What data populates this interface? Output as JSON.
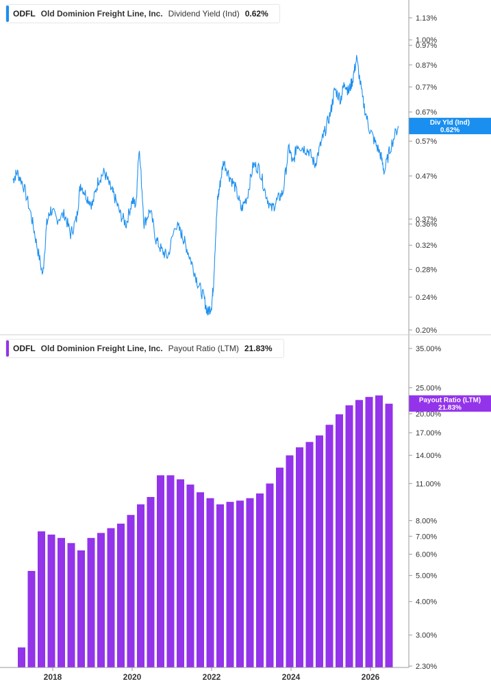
{
  "chart_data": [
    {
      "type": "line",
      "ticker": "ODFL",
      "company": "Old Dominion Freight Line, Inc.",
      "metric": "Dividend Yield (Ind)",
      "current_value": "0.62%",
      "callout_label": "Div Yld (Ind)",
      "callout_value": "0.62%",
      "color": "#1a8ff0",
      "scale": "log",
      "ylim": [
        0.2,
        1.2
      ],
      "y_ticks": [
        {
          "label": "1.13%",
          "value": 1.13
        },
        {
          "label": "1.00%",
          "value": 1.0
        },
        {
          "label": "0.97%",
          "value": 0.97
        },
        {
          "label": "0.87%",
          "value": 0.87
        },
        {
          "label": "0.77%",
          "value": 0.77
        },
        {
          "label": "0.67%",
          "value": 0.67
        },
        {
          "label": "0.57%",
          "value": 0.57
        },
        {
          "label": "0.47%",
          "value": 0.47
        },
        {
          "label": "0.37%",
          "value": 0.37
        },
        {
          "label": "0.36%",
          "value": 0.36
        },
        {
          "label": "0.32%",
          "value": 0.32
        },
        {
          "label": "0.28%",
          "value": 0.28
        },
        {
          "label": "0.24%",
          "value": 0.24
        },
        {
          "label": "0.20%",
          "value": 0.2
        }
      ],
      "x": [
        2017.0,
        2017.1,
        2017.25,
        2017.45,
        2017.6,
        2017.75,
        2017.85,
        2017.95,
        2018.1,
        2018.3,
        2018.45,
        2018.6,
        2018.7,
        2018.85,
        2019.0,
        2019.15,
        2019.3,
        2019.45,
        2019.55,
        2019.7,
        2019.85,
        2020.0,
        2020.1,
        2020.17,
        2020.3,
        2020.45,
        2020.6,
        2020.75,
        2020.9,
        2021.1,
        2021.25,
        2021.35,
        2021.5,
        2021.65,
        2021.8,
        2021.9,
        2022.0,
        2022.05,
        2022.15,
        2022.2,
        2022.3,
        2022.45,
        2022.6,
        2022.75,
        2022.9,
        2023.05,
        2023.2,
        2023.35,
        2023.5,
        2023.65,
        2023.8,
        2023.95,
        2024.05,
        2024.15,
        2024.3,
        2024.45,
        2024.6,
        2024.75,
        2024.85,
        2025.0,
        2025.1,
        2025.25,
        2025.35,
        2025.45,
        2025.55,
        2025.65,
        2025.8,
        2025.95,
        2026.1,
        2026.25,
        2026.35,
        2026.5,
        2026.7
      ],
      "y": [
        0.46,
        0.48,
        0.45,
        0.38,
        0.32,
        0.27,
        0.36,
        0.39,
        0.37,
        0.38,
        0.34,
        0.37,
        0.45,
        0.42,
        0.4,
        0.46,
        0.48,
        0.44,
        0.42,
        0.38,
        0.36,
        0.41,
        0.4,
        0.55,
        0.36,
        0.39,
        0.33,
        0.31,
        0.3,
        0.36,
        0.34,
        0.32,
        0.29,
        0.26,
        0.24,
        0.22,
        0.23,
        0.26,
        0.41,
        0.44,
        0.51,
        0.47,
        0.44,
        0.39,
        0.42,
        0.5,
        0.49,
        0.43,
        0.39,
        0.41,
        0.43,
        0.55,
        0.5,
        0.56,
        0.55,
        0.54,
        0.5,
        0.56,
        0.6,
        0.67,
        0.76,
        0.72,
        0.79,
        0.75,
        0.8,
        0.9,
        0.72,
        0.62,
        0.57,
        0.53,
        0.48,
        0.55,
        0.62
      ]
    },
    {
      "type": "bar",
      "ticker": "ODFL",
      "company": "Old Dominion Freight Line, Inc.",
      "metric": "Payout Ratio (LTM)",
      "current_value": "21.83%",
      "callout_label": "Payout Ratio (LTM)",
      "callout_value": "21.83%",
      "color": "#9333ea",
      "scale": "log",
      "ylim": [
        2.3,
        35
      ],
      "y_ticks": [
        {
          "label": "35.00%",
          "value": 35
        },
        {
          "label": "25.00%",
          "value": 25
        },
        {
          "label": "20.00%",
          "value": 20
        },
        {
          "label": "17.00%",
          "value": 17
        },
        {
          "label": "14.00%",
          "value": 14
        },
        {
          "label": "11.00%",
          "value": 11
        },
        {
          "label": "8.00%",
          "value": 8
        },
        {
          "label": "7.00%",
          "value": 7
        },
        {
          "label": "6.00%",
          "value": 6
        },
        {
          "label": "5.00%",
          "value": 5
        },
        {
          "label": "4.00%",
          "value": 4
        },
        {
          "label": "3.00%",
          "value": 3
        },
        {
          "label": "2.30%",
          "value": 2.3
        }
      ],
      "x": [
        2017.25,
        2017.5,
        2017.75,
        2018.0,
        2018.25,
        2018.5,
        2018.75,
        2019.0,
        2019.25,
        2019.5,
        2019.75,
        2020.0,
        2020.25,
        2020.5,
        2020.75,
        2021.0,
        2021.25,
        2021.5,
        2021.75,
        2022.0,
        2022.25,
        2022.5,
        2022.75,
        2023.0,
        2023.25,
        2023.5,
        2023.75,
        2024.0,
        2024.25,
        2024.5,
        2024.75,
        2025.0,
        2025.25,
        2025.5,
        2025.75,
        2026.0,
        2026.25,
        2026.5
      ],
      "values": [
        2.7,
        5.2,
        7.3,
        7.1,
        6.9,
        6.6,
        6.2,
        6.9,
        7.2,
        7.5,
        7.8,
        8.4,
        9.2,
        9.8,
        11.8,
        11.8,
        11.4,
        10.9,
        10.2,
        9.7,
        9.2,
        9.4,
        9.5,
        9.7,
        10.1,
        11.0,
        12.6,
        14.0,
        15.0,
        15.7,
        16.6,
        18.2,
        19.9,
        21.5,
        22.5,
        23.1,
        23.4,
        21.8
      ]
    }
  ],
  "x_ticks": [
    "2018",
    "2020",
    "2022",
    "2024",
    "2026"
  ]
}
